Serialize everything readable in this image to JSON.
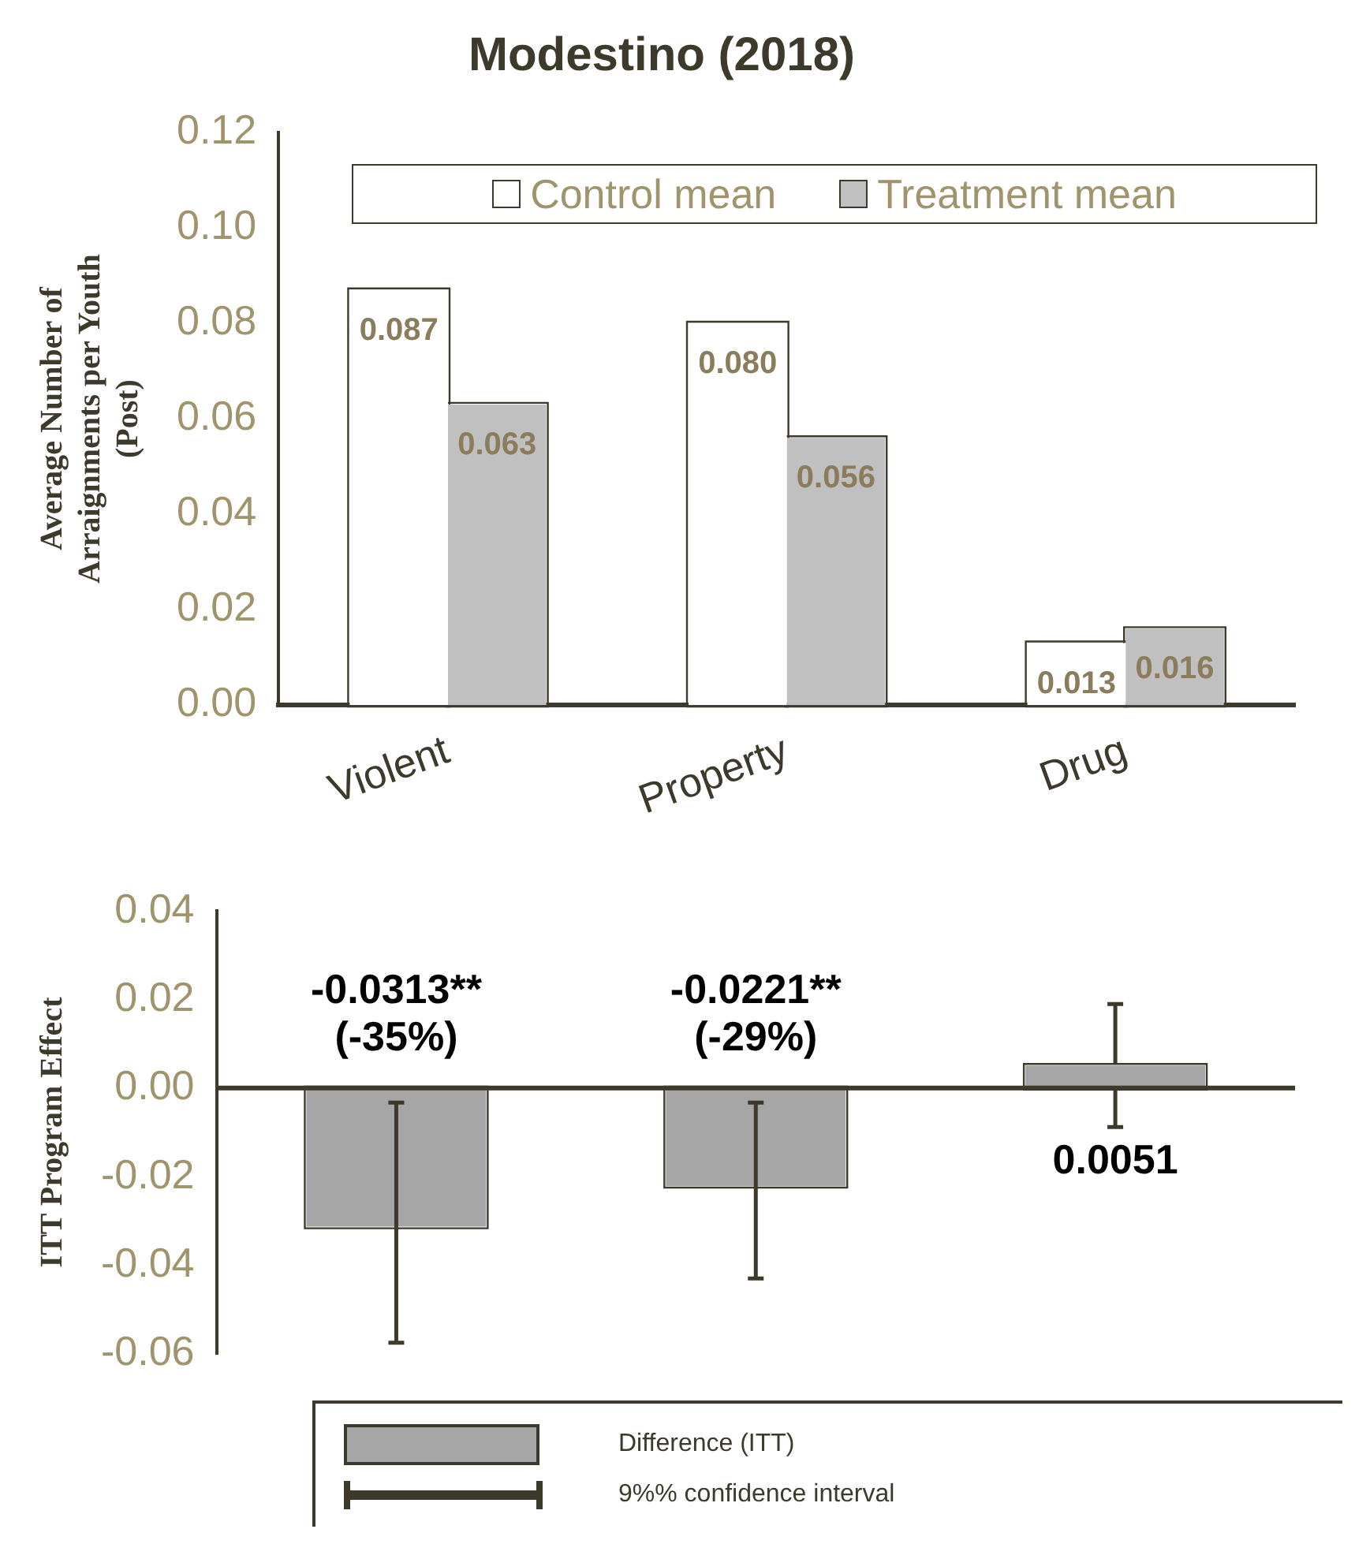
{
  "chart_data": [
    {
      "type": "bar",
      "title": "Modestino (2018)",
      "ylabel": "Average Number of\nArraignments per Youth\n(Post)",
      "categories": [
        "Violent",
        "Property",
        "Drug"
      ],
      "series": [
        {
          "name": "Control mean",
          "color": "#ffffff",
          "values": [
            0.087,
            0.08,
            0.013
          ],
          "value_labels": [
            "0.087",
            "0.080",
            "0.013"
          ]
        },
        {
          "name": "Treatment mean",
          "color": "#c0c0c0",
          "values": [
            0.063,
            0.056,
            0.016
          ],
          "value_labels": [
            "0.063",
            "0.056",
            "0.016"
          ]
        }
      ],
      "ylim": [
        0,
        0.12
      ],
      "yticks": [
        {
          "value": 0,
          "label": "0.00"
        },
        {
          "value": 0.02,
          "label": "0.02"
        },
        {
          "value": 0.04,
          "label": "0.04"
        },
        {
          "value": 0.06,
          "label": "0.06"
        },
        {
          "value": 0.08,
          "label": "0.08"
        },
        {
          "value": 0.1,
          "label": "0.10"
        },
        {
          "value": 0.12,
          "label": "0.12"
        }
      ],
      "grid": false,
      "legend": "top"
    },
    {
      "type": "bar",
      "ylabel": "ITT Program Effect",
      "categories": [
        null,
        null,
        null
      ],
      "series": [
        {
          "name": "Difference (ITT)",
          "color": "#a6a6a6",
          "values": [
            -0.0313,
            -0.0221,
            0.0051
          ],
          "errors": [
            [
              -0.0575,
              -0.0033
            ],
            [
              -0.043,
              -0.0033
            ],
            [
              -0.0088,
              0.019
            ]
          ],
          "value_labels": [
            "-0.0313**\n(-35%)",
            "-0.0221**\n(-29%)",
            "0.0051"
          ]
        }
      ],
      "ylim": [
        -0.06,
        0.04
      ],
      "yticks": [
        {
          "value": -0.06,
          "label": "-0.06"
        },
        {
          "value": -0.04,
          "label": "-0.04"
        },
        {
          "value": -0.02,
          "label": "-0.02"
        },
        {
          "value": 0,
          "label": "0.00"
        },
        {
          "value": 0.02,
          "label": "0.02"
        },
        {
          "value": 0.04,
          "label": "0.04"
        }
      ],
      "annotations": [
        "9%% confidence interval"
      ],
      "ref_lines": [
        {
          "axis": "y",
          "value": 0,
          "color": "#3d3a2c"
        }
      ],
      "grid": false,
      "legend": "bottom",
      "tick_labels": "y"
    }
  ]
}
